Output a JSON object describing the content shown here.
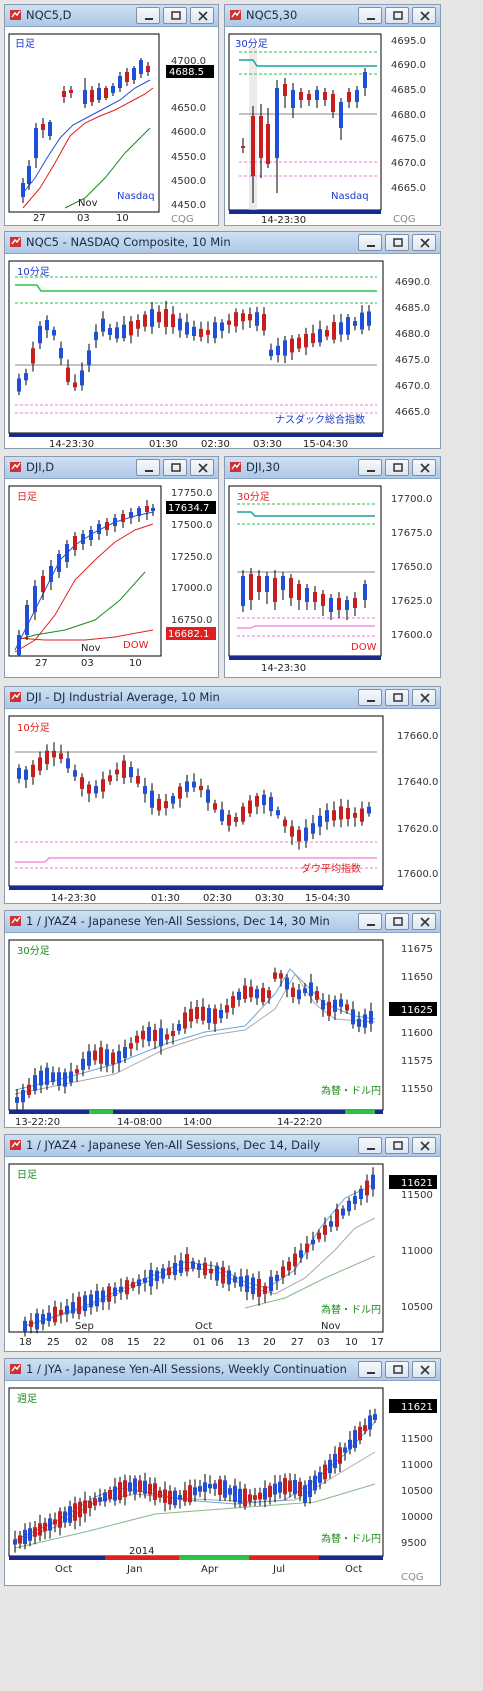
{
  "windows": [
    {
      "id": "w1",
      "title": "NQC5,D",
      "chart_label": "日足",
      "chart_label_color": "#1a3ad0",
      "series_label": "Nasdaq",
      "series_label_color": "#1a3ad0",
      "price_ticks": [
        "4700.0",
        "4650.0",
        "4600.0",
        "4550.0",
        "4500.0",
        "4450.0"
      ],
      "last_price": "4688.5",
      "time_ticks": [
        "27",
        "03",
        "10"
      ],
      "time_group": "Nov",
      "logo": "CQG"
    },
    {
      "id": "w2",
      "title": "NQC5,30",
      "chart_label": "30分足",
      "chart_label_color": "#1a3ad0",
      "series_label": "Nasdaq",
      "series_label_color": "#1a3ad0",
      "price_ticks": [
        "4695.0",
        "4690.0",
        "4685.0",
        "4680.0",
        "4675.0",
        "4670.0",
        "4665.0"
      ],
      "time_ticks": [
        "14-23:30"
      ],
      "logo": "CQG"
    },
    {
      "id": "w3",
      "title": "NQC5 - NASDAQ Composite, 10 Min",
      "chart_label": "10分足",
      "chart_label_color": "#1a3ad0",
      "series_label": "ナスダック総合指数",
      "series_label_color": "#1a3ad0",
      "price_ticks": [
        "4690.0",
        "4685.0",
        "4680.0",
        "4675.0",
        "4670.0",
        "4665.0"
      ],
      "time_ticks": [
        "14-23:30",
        "01:30",
        "02:30",
        "03:30",
        "15-04:30"
      ]
    },
    {
      "id": "w4",
      "title": "DJI,D",
      "chart_label": "日足",
      "chart_label_color": "#e02020",
      "series_label": "DOW",
      "series_label_color": "#e02020",
      "price_ticks": [
        "17750.0",
        "17500.0",
        "17250.0",
        "17000.0",
        "16750.0"
      ],
      "last_price": "17634.7",
      "lower_price": "16682.1",
      "time_ticks": [
        "27",
        "03",
        "10"
      ],
      "time_group": "Nov"
    },
    {
      "id": "w5",
      "title": "DJI,30",
      "chart_label": "30分足",
      "chart_label_color": "#e02020",
      "series_label": "DOW",
      "series_label_color": "#e02020",
      "price_ticks": [
        "17700.0",
        "17675.0",
        "17650.0",
        "17625.0",
        "17600.0"
      ],
      "time_ticks": [
        "14-23:30"
      ]
    },
    {
      "id": "w6",
      "title": "DJI - DJ Industrial Average, 10 Min",
      "chart_label": "10分足",
      "chart_label_color": "#e02020",
      "series_label": "ダウ平均指数",
      "series_label_color": "#e02020",
      "price_ticks": [
        "17660.0",
        "17640.0",
        "17620.0",
        "17600.0"
      ],
      "time_ticks": [
        "14-23:30",
        "01:30",
        "02:30",
        "03:30",
        "15-04:30"
      ]
    },
    {
      "id": "w7",
      "title": "1 / JYAZ4 - Japanese Yen-All Sessions, Dec 14, 30 Min",
      "chart_label": "30分足",
      "chart_label_color": "#1a8a1a",
      "series_label": "為替・ドル円",
      "series_label_color": "#1a8a1a",
      "price_ticks": [
        "11675",
        "11650",
        "11625",
        "11600",
        "11575",
        "11550"
      ],
      "last_price": "11625",
      "time_ticks": [
        "13-22:20",
        "14-08:00",
        "14:00",
        "14-22:20"
      ]
    },
    {
      "id": "w8",
      "title": "1 / JYAZ4 - Japanese Yen-All Sessions, Dec 14, Daily",
      "chart_label": "日足",
      "chart_label_color": "#1a8a1a",
      "series_label": "為替・ドル円",
      "series_label_color": "#1a8a1a",
      "price_ticks": [
        "11500",
        "11000",
        "10500"
      ],
      "last_price": "11621",
      "time_ticks": [
        "18",
        "25",
        "02",
        "08",
        "15",
        "22",
        "01",
        "06",
        "13",
        "20",
        "27",
        "03",
        "10",
        "17"
      ],
      "time_groups": [
        "Sep",
        "Oct",
        "Nov"
      ]
    },
    {
      "id": "w9",
      "title": "1 / JYA - Japanese Yen-All Sessions, Weekly Continuation",
      "chart_label": "週足",
      "chart_label_color": "#1a8a1a",
      "series_label": "為替・ドル円",
      "series_label_color": "#1a8a1a",
      "price_ticks": [
        "11500",
        "11000",
        "10500",
        "10000",
        "9500"
      ],
      "last_price": "11621",
      "time_ticks": [
        "Oct",
        "Jan",
        "Apr",
        "Jul",
        "Oct"
      ],
      "time_group": "2014",
      "logo": "CQG"
    }
  ],
  "window_buttons": {
    "minimize": "minimize-icon",
    "restore": "restore-icon",
    "close": "close-icon"
  },
  "colors": {
    "up": "#1f4fd8",
    "down": "#c81e1e",
    "ma_fast": "#1f4fd8",
    "ma_mid": "#e02020",
    "ma_slow": "#1a8a1a",
    "pivot_green": "#2ac24a",
    "pivot_pink": "#f07ad8",
    "teal": "#1aa0a0"
  }
}
